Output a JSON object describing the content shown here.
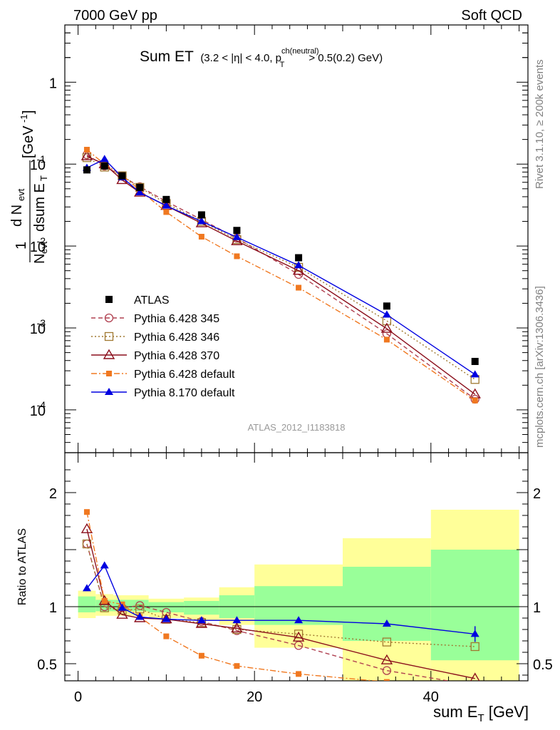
{
  "header": {
    "left": "7000 GeV pp",
    "right": "Soft QCD"
  },
  "side_text": {
    "rivet": "Rivet 3.1.10, ≥ 200k events",
    "mcplots": "mcplots.cern.ch [arXiv:1306.3436]"
  },
  "watermark": "ATLAS_2012_I1183818",
  "chart_data": {
    "type": "scatter",
    "title": "Sum ET",
    "subtitle": "(3.2 < |η| < 4.0, p_T^{ch(neutral)} > 0.5(0.2) GeV)",
    "xlabel": "sum E_T [GeV]",
    "ylabel_main": "1/N_evt dN_evt/dsum E_T [GeV^-1]",
    "ylabel_ratio": "Ratio to ATLAS",
    "xlim": [
      -1.5,
      51
    ],
    "ylim_main": [
      3e-05,
      5
    ],
    "ylim_ratio": [
      0.35,
      2.35
    ],
    "y_scale_main": "log",
    "x_ticks": [
      0,
      20,
      40
    ],
    "main_y_tick_labels": [
      "1",
      "10^-1",
      "10^-2",
      "10^-3",
      "10^-4"
    ],
    "ratio_y_ticks": [
      0.5,
      1,
      2
    ],
    "legend_position": "lower-left",
    "x": [
      1,
      3,
      5,
      7,
      10,
      14,
      18,
      25,
      35,
      45
    ],
    "data_name": "ATLAS",
    "data_values": [
      0.085,
      0.095,
      0.072,
      0.052,
      0.037,
      0.024,
      0.0155,
      0.0072,
      0.00185,
      0.00039
    ],
    "series": [
      {
        "name": "Pythia 6.428 345",
        "color": "#b04050",
        "dash": "6,4",
        "marker": "open-circle",
        "values": [
          0.13,
          0.095,
          0.071,
          0.053,
          0.035,
          0.021,
          0.0125,
          0.0045,
          0.00085,
          0.000135
        ],
        "ratio": [
          1.55,
          1.0,
          0.99,
          1.01,
          0.95,
          0.87,
          0.79,
          0.66,
          0.44,
          0.31
        ]
      },
      {
        "name": "Pythia 6.428 346",
        "color": "#a07830",
        "dash": "2,3",
        "marker": "open-square",
        "values": [
          0.12,
          0.092,
          0.072,
          0.052,
          0.033,
          0.02,
          0.012,
          0.0055,
          0.00122,
          0.000235
        ],
        "ratio": [
          1.55,
          0.99,
          0.97,
          0.98,
          0.89,
          0.86,
          0.8,
          0.76,
          0.69,
          0.65
        ]
      },
      {
        "name": "Pythia 6.428 370",
        "color": "#8b0f1c",
        "dash": "",
        "marker": "open-triangle",
        "values": [
          0.125,
          0.1,
          0.064,
          0.045,
          0.031,
          0.019,
          0.0115,
          0.005,
          0.00098,
          0.000155
        ],
        "ratio": [
          1.68,
          1.05,
          0.93,
          0.9,
          0.89,
          0.85,
          0.81,
          0.73,
          0.53,
          0.37
        ]
      },
      {
        "name": "Pythia 6.428 default",
        "color": "#f07820",
        "dash": "8,3,2,3",
        "marker": "filled-square",
        "values": [
          0.15,
          0.1,
          0.073,
          0.048,
          0.026,
          0.013,
          0.0075,
          0.0031,
          0.00072,
          0.00013
        ],
        "ratio": [
          1.83,
          1.05,
          1.02,
          0.91,
          0.74,
          0.57,
          0.48,
          0.41,
          0.34,
          0.31
        ]
      },
      {
        "name": "Pythia 8.170 default",
        "color": "#0000e0",
        "dash": "",
        "marker": "filled-triangle",
        "values": [
          0.09,
          0.115,
          0.069,
          0.045,
          0.031,
          0.02,
          0.0128,
          0.0058,
          0.00145,
          0.00027
        ],
        "ratio": [
          1.16,
          1.36,
          0.99,
          0.91,
          0.89,
          0.88,
          0.88,
          0.88,
          0.85,
          0.76
        ]
      }
    ],
    "uncertainty_bands": {
      "bins": [
        [
          0,
          2
        ],
        [
          2,
          4
        ],
        [
          4,
          8
        ],
        [
          8,
          12
        ],
        [
          12,
          16
        ],
        [
          16,
          20
        ],
        [
          20,
          30
        ],
        [
          30,
          40
        ],
        [
          40,
          50
        ]
      ],
      "inner": [
        [
          0.95,
          1.09
        ],
        [
          0.96,
          1.06
        ],
        [
          0.96,
          1.06
        ],
        [
          0.95,
          1.04
        ],
        [
          0.93,
          1.05
        ],
        [
          0.9,
          1.1
        ],
        [
          0.84,
          1.18
        ],
        [
          0.7,
          1.35
        ],
        [
          0.53,
          1.5
        ]
      ],
      "outer": [
        [
          0.9,
          1.14
        ],
        [
          0.92,
          1.11
        ],
        [
          0.92,
          1.1
        ],
        [
          0.9,
          1.07
        ],
        [
          0.88,
          1.08
        ],
        [
          0.84,
          1.17
        ],
        [
          0.64,
          1.37
        ],
        [
          0.35,
          1.6
        ],
        [
          0.35,
          1.85
        ]
      ],
      "inner_color": "#99ff99",
      "outer_color": "#ffff99"
    },
    "data_marker_color": "#000000"
  }
}
